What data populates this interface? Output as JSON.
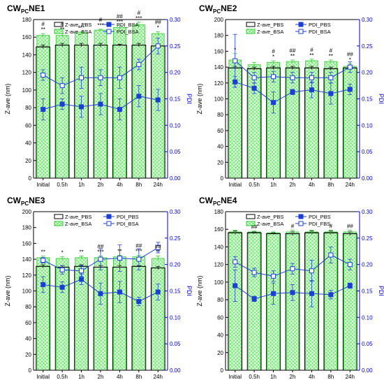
{
  "colors": {
    "axis": "#000000",
    "pdi_axis": "#0000cc",
    "pbs_bar_edge": "#000000",
    "bsa_bar_edge": "#33cc33",
    "bsa_bar_fill": "#66ee66",
    "pdi_line": "#1a3fd6",
    "sig": "#000000"
  },
  "chart_data": [
    {
      "type": "bar",
      "title": {
        "main": "CW",
        "sub": "PC",
        "suffix": "NE1"
      },
      "categories": [
        "Initial",
        "0.5h",
        "1h",
        "2h",
        "4h",
        "8h",
        "24h"
      ],
      "ylabel": "Z-ave (nm)",
      "y2label": "PDI",
      "ylim": [
        0,
        180
      ],
      "yticks": [
        0,
        20,
        40,
        60,
        80,
        100,
        120,
        140,
        160,
        180
      ],
      "y2lim": [
        0,
        0.3
      ],
      "y2ticks": [
        "0.00",
        "0.05",
        "0.10",
        "0.15",
        "0.20",
        "0.25",
        "0.30"
      ],
      "legend": [
        "Z-ave_PBS",
        "PDI_BSA",
        "Z-ave_BSA",
        "PDI_BSA"
      ],
      "legend_placement": "top",
      "bar_series": [
        {
          "name": "Z-ave_PBS",
          "values": [
            149,
            151,
            151,
            151,
            151,
            151,
            150
          ],
          "err": [
            2,
            2,
            2,
            2,
            1,
            2,
            1
          ]
        },
        {
          "name": "Z-ave_BSA",
          "values": [
            162,
            162,
            165,
            168,
            171,
            174,
            164
          ],
          "err": [
            2,
            2,
            1,
            1,
            2,
            3,
            2
          ]
        }
      ],
      "line_series": [
        {
          "name": "PDI_BSA",
          "marker": "filled",
          "values": [
            0.13,
            0.14,
            0.135,
            0.14,
            0.13,
            0.155,
            0.148
          ],
          "err": [
            0.02,
            0.01,
            0.02,
            0.02,
            0.02,
            0.02,
            0.02
          ]
        },
        {
          "name": "PDI_BSA",
          "marker": "open",
          "values": [
            0.195,
            0.175,
            0.19,
            0.19,
            0.19,
            0.215,
            0.25
          ],
          "err": [
            0.01,
            0.015,
            0.02,
            0.015,
            0.02,
            0.01,
            0.015
          ]
        }
      ],
      "significance": [
        {
          "top": "#",
          "bottom": "**"
        },
        {
          "top": "#",
          "bottom": "**"
        },
        {
          "top": "",
          "bottom": "***"
        },
        {
          "top": "#",
          "bottom": "***"
        },
        {
          "top": "##",
          "bottom": "***"
        },
        {
          "top": "#",
          "bottom": "***"
        },
        {
          "top": "##",
          "bottom": "*"
        }
      ]
    },
    {
      "type": "bar",
      "title": {
        "main": "CW",
        "sub": "PC",
        "suffix": "NE2"
      },
      "categories": [
        "Initial",
        "0.5h",
        "1h",
        "2h",
        "4h",
        "8h",
        "24h"
      ],
      "ylabel": "Z-ave (nm)",
      "y2label": "PDI",
      "ylim": [
        0,
        200
      ],
      "yticks": [
        0,
        20,
        40,
        60,
        80,
        100,
        120,
        140,
        160,
        180,
        200
      ],
      "y2lim": [
        0,
        0.3
      ],
      "y2ticks": [
        "0.00",
        "0.05",
        "0.10",
        "0.15",
        "0.20",
        "0.25",
        "0.30"
      ],
      "legend": [
        "Z-ave_PBS",
        "PDI_PBS",
        "Z-ave_BSA",
        "PDI_BSA"
      ],
      "legend_placement": "top",
      "bar_series": [
        {
          "name": "Z-ave_PBS",
          "values": [
            139,
            138,
            139,
            139,
            139,
            138,
            139
          ],
          "err": [
            2,
            2,
            2,
            2,
            2,
            2,
            2
          ]
        },
        {
          "name": "Z-ave_BSA",
          "values": [
            149,
            143,
            146,
            147,
            148,
            147,
            141
          ],
          "err": [
            8,
            3,
            2,
            2,
            2,
            2,
            3
          ]
        }
      ],
      "line_series": [
        {
          "name": "PDI_PBS",
          "marker": "filled",
          "values": [
            0.182,
            0.17,
            0.143,
            0.163,
            0.167,
            0.16,
            0.168
          ],
          "err": [
            0.01,
            0.01,
            0.02,
            0.005,
            0.015,
            0.02,
            0.01
          ]
        },
        {
          "name": "PDI_BSA",
          "marker": "open",
          "values": [
            0.222,
            0.19,
            0.192,
            0.19,
            0.19,
            0.19,
            0.21
          ],
          "err": [
            0.05,
            0.01,
            0.01,
            0.01,
            0.01,
            0.01,
            0.01
          ]
        }
      ],
      "significance": [
        {
          "top": "",
          "bottom": "*"
        },
        {
          "top": "",
          "bottom": ""
        },
        {
          "top": "#",
          "bottom": "*"
        },
        {
          "top": "##",
          "bottom": "**"
        },
        {
          "top": "#",
          "bottom": "**"
        },
        {
          "top": "#",
          "bottom": "**"
        },
        {
          "top": "##",
          "bottom": "*"
        }
      ]
    },
    {
      "type": "bar",
      "title": {
        "main": "CW",
        "sub": "PC",
        "suffix": "NE3"
      },
      "categories": [
        "Initial",
        "0.5h",
        "1h",
        "2h",
        "4h",
        "8h",
        "24h"
      ],
      "ylabel": "Z-ave (nm)",
      "y2label": "PDI",
      "ylim": [
        0,
        200
      ],
      "yticks": [
        0,
        20,
        40,
        60,
        80,
        100,
        120,
        140,
        160,
        180,
        200
      ],
      "y2lim": [
        0,
        0.3
      ],
      "y2ticks": [
        "0.00",
        "0.05",
        "0.10",
        "0.15",
        "0.20",
        "0.25",
        "0.30"
      ],
      "legend": [
        "Z-ave_PBS",
        "PDI_PBS",
        "Z-ave_BSA",
        "PDI_BSA"
      ],
      "legend_placement": "top",
      "bar_series": [
        {
          "name": "Z-ave_PBS",
          "values": [
            131,
            130,
            131,
            130,
            130,
            131,
            129
          ],
          "err": [
            2,
            2,
            2,
            2,
            2,
            1,
            2
          ]
        },
        {
          "name": "Z-ave_BSA",
          "values": [
            142,
            141,
            142,
            142,
            143,
            143,
            141
          ],
          "err": [
            2,
            2,
            2,
            2,
            2,
            2,
            3
          ]
        }
      ],
      "line_series": [
        {
          "name": "PDI_PBS",
          "marker": "filled",
          "values": [
            0.162,
            0.157,
            0.172,
            0.145,
            0.148,
            0.13,
            0.148
          ],
          "err": [
            0.015,
            0.01,
            0.01,
            0.02,
            0.02,
            0.008,
            0.015
          ]
        },
        {
          "name": "PDI_BSA",
          "marker": "open",
          "values": [
            0.208,
            0.19,
            0.188,
            0.21,
            0.212,
            0.21,
            0.232
          ],
          "err": [
            0.005,
            0.008,
            0.01,
            0.02,
            0.025,
            0.02,
            0.01
          ]
        }
      ],
      "significance": [
        {
          "top": "",
          "bottom": "**"
        },
        {
          "top": "",
          "bottom": "*"
        },
        {
          "top": "",
          "bottom": "**"
        },
        {
          "top": "##",
          "bottom": "***"
        },
        {
          "top": "",
          "bottom": "**"
        },
        {
          "top": "##",
          "bottom": "***"
        },
        {
          "top": "##",
          "bottom": "**"
        }
      ]
    },
    {
      "type": "bar",
      "title": {
        "main": "CW",
        "sub": "PC",
        "suffix": "NE4"
      },
      "categories": [
        "Initial",
        "0.5h",
        "1h",
        "2h",
        "4h",
        "8h",
        "24h"
      ],
      "ylabel": "Z-ave (nm)",
      "y2label": "PDI",
      "ylim": [
        0,
        180
      ],
      "yticks": [
        0,
        20,
        40,
        60,
        80,
        100,
        120,
        140,
        160,
        180
      ],
      "y2lim": [
        0,
        0.3
      ],
      "y2ticks": [
        "0.00",
        "0.05",
        "0.10",
        "0.15",
        "0.20",
        "0.25",
        "0.30"
      ],
      "legend": [
        "Z-ave_PBS",
        "PDI_PBS",
        "Z-ave_BSA",
        "PDI_FBS"
      ],
      "legend_placement": "top",
      "bar_series": [
        {
          "name": "Z-ave_PBS",
          "values": [
            156,
            156,
            155,
            155,
            156,
            156,
            155
          ],
          "err": [
            2,
            1,
            1,
            2,
            2,
            2,
            2
          ]
        },
        {
          "name": "Z-ave_BSA",
          "values": [
            157,
            157,
            156,
            157,
            157,
            157,
            157
          ],
          "err": [
            2,
            1,
            1,
            2,
            2,
            2,
            2
          ]
        }
      ],
      "line_series": [
        {
          "name": "PDI_PBS",
          "marker": "filled",
          "values": [
            0.16,
            0.135,
            0.145,
            0.147,
            0.145,
            0.143,
            0.16
          ],
          "err": [
            0.03,
            0.005,
            0.02,
            0.015,
            0.025,
            0.008,
            0.005
          ]
        },
        {
          "name": "PDI_FBS",
          "marker": "open",
          "values": [
            0.205,
            0.185,
            0.178,
            0.192,
            0.188,
            0.218,
            0.2
          ],
          "err": [
            0.01,
            0.008,
            0.01,
            0.01,
            0.02,
            0.015,
            0.01
          ]
        }
      ],
      "significance": [
        {
          "top": "",
          "bottom": ""
        },
        {
          "top": "",
          "bottom": "##"
        },
        {
          "top": "",
          "bottom": ""
        },
        {
          "top": "",
          "bottom": "#"
        },
        {
          "top": "",
          "bottom": ""
        },
        {
          "top": "",
          "bottom": "#"
        },
        {
          "top": "",
          "bottom": "##"
        }
      ]
    }
  ]
}
